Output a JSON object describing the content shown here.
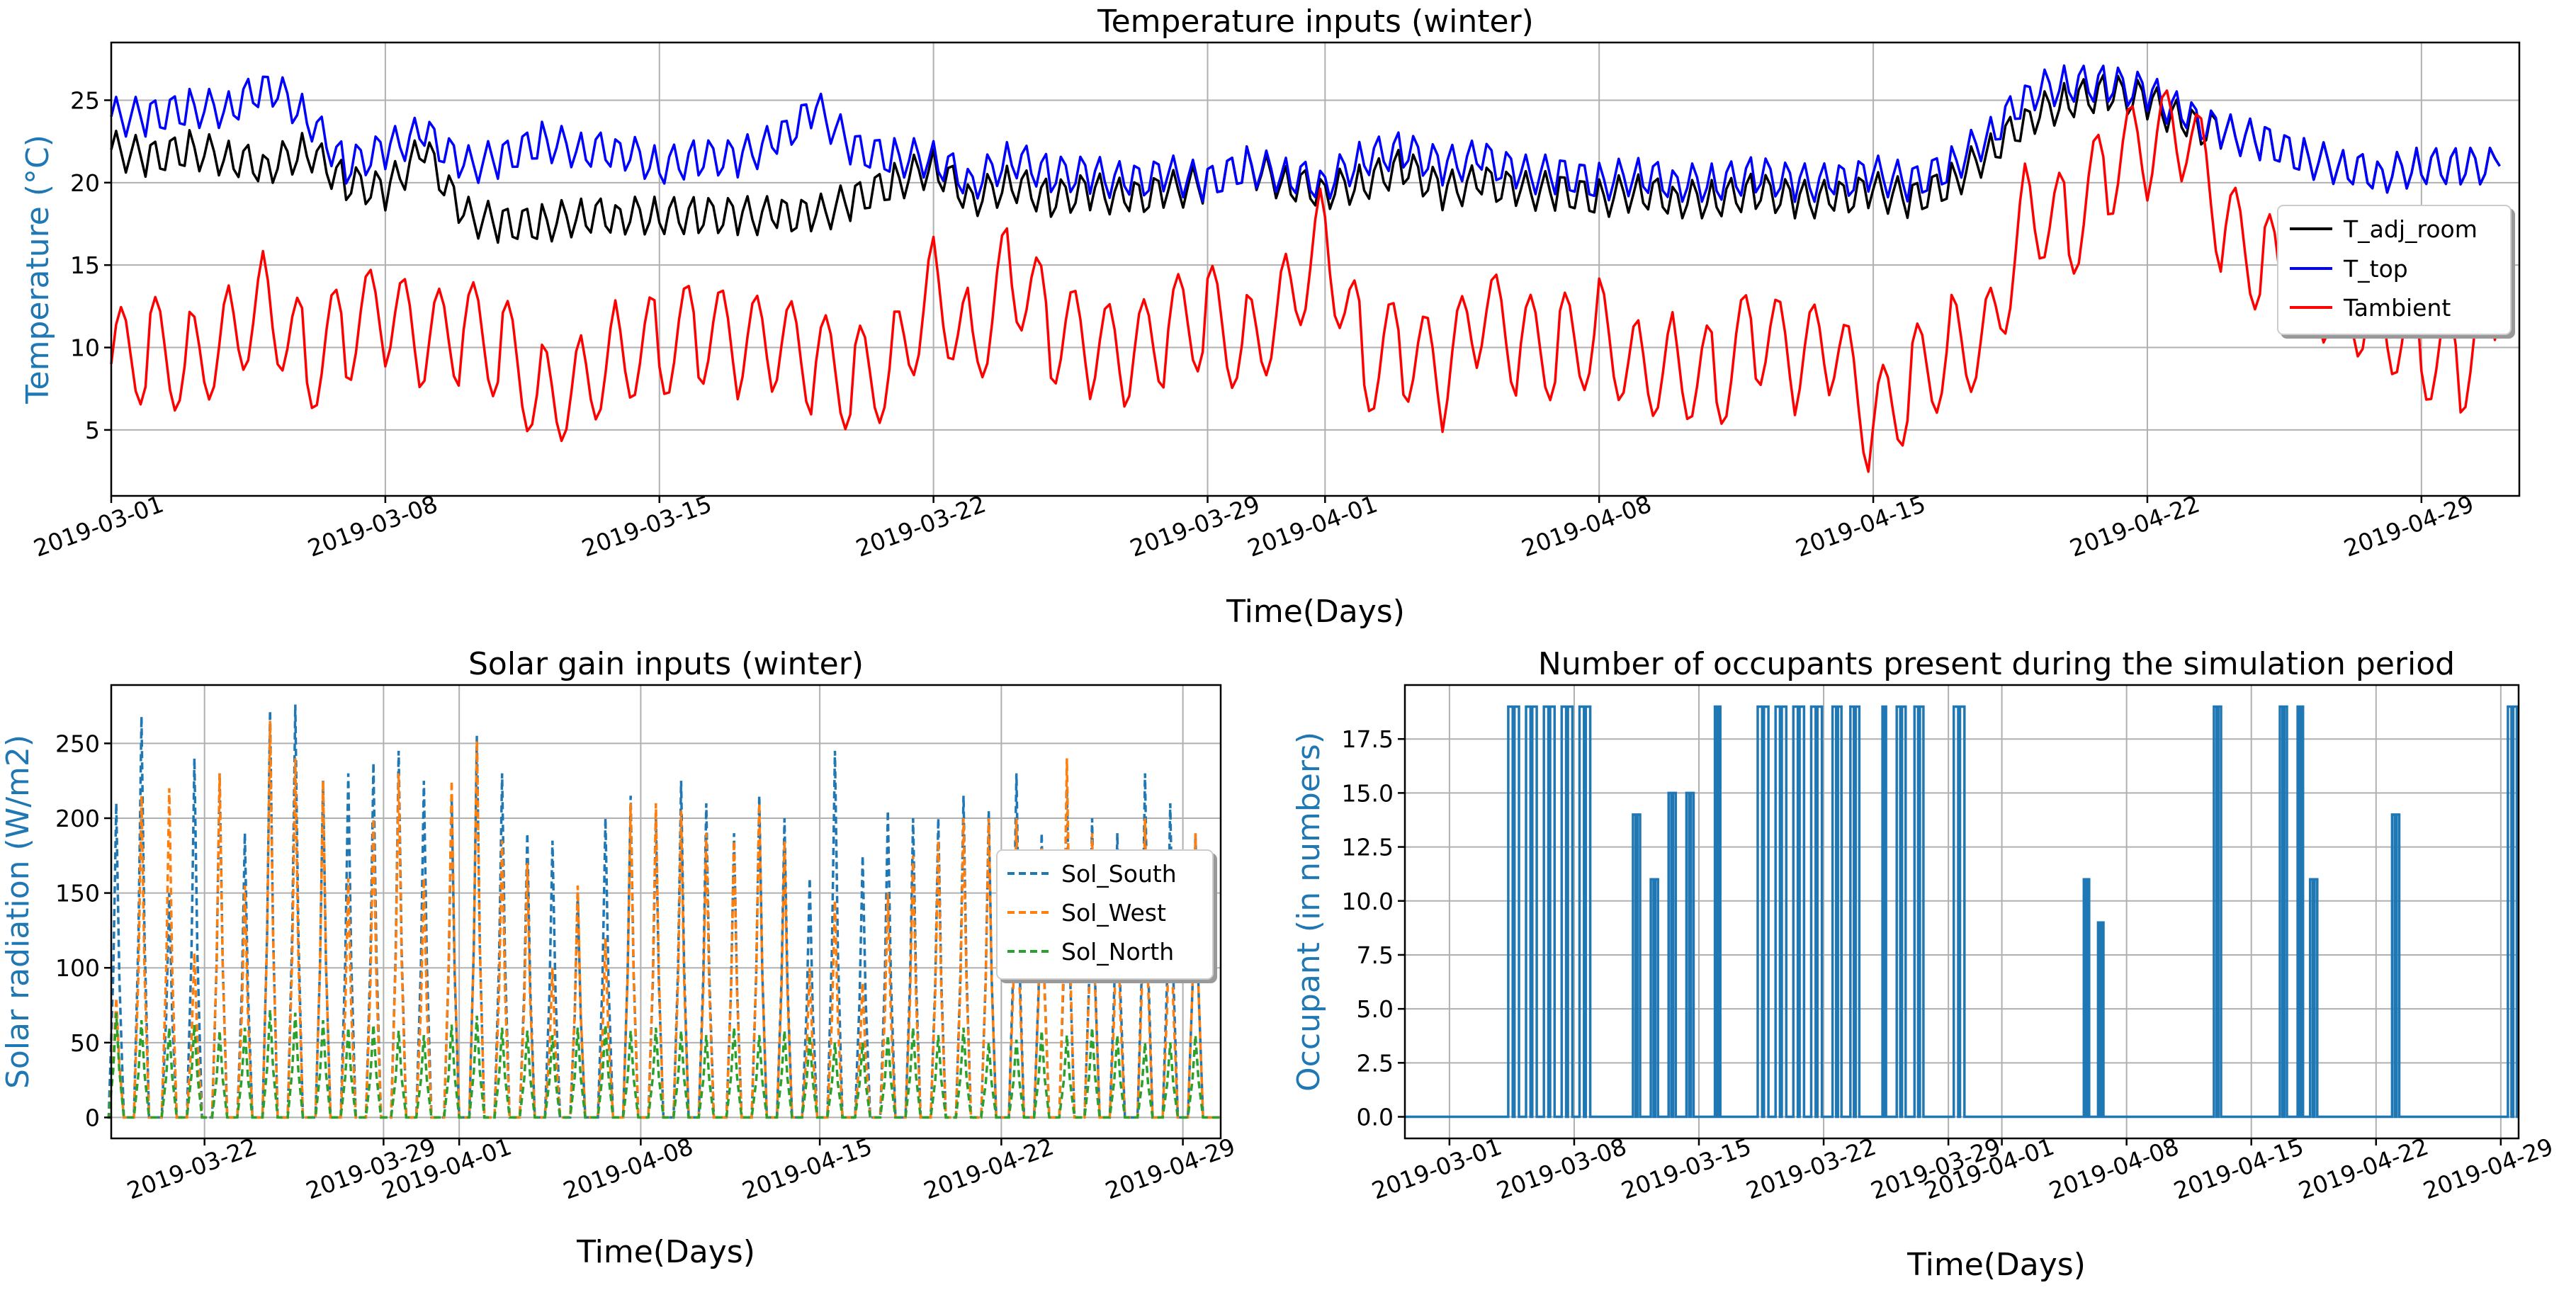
{
  "colors": {
    "T_adj_room": "#000000",
    "T_top": "#0000ff",
    "Tambient": "#ff0000",
    "Sol_South": "#1f77b4",
    "Sol_West": "#ff7f0e",
    "Sol_North": "#2ca02c",
    "occupant": "#1f77b4"
  },
  "chart_data": [
    {
      "type": "line",
      "title": "Temperature inputs (winter)",
      "xlabel": "Time(Days)",
      "ylabel": "Temperature (°C)",
      "xlim": [
        0,
        61.5
      ],
      "ylim": [
        1,
        28.5
      ],
      "x_ticks": [
        {
          "label": "2019-03-01",
          "day": 0
        },
        {
          "label": "2019-03-08",
          "day": 7
        },
        {
          "label": "2019-03-15",
          "day": 14
        },
        {
          "label": "2019-03-22",
          "day": 21
        },
        {
          "label": "2019-03-29",
          "day": 28
        },
        {
          "label": "2019-04-01",
          "day": 31
        },
        {
          "label": "2019-04-08",
          "day": 38
        },
        {
          "label": "2019-04-15",
          "day": 45
        },
        {
          "label": "2019-04-22",
          "day": 52
        },
        {
          "label": "2019-04-29",
          "day": 59
        }
      ],
      "y_ticks": [
        5,
        10,
        15,
        20,
        25
      ],
      "legend": {
        "position": "center-right"
      },
      "series": [
        {
          "name": "T_adj_room",
          "color_key": "T_adj_room",
          "style": "solid",
          "x": [
            0,
            1,
            2,
            3,
            4,
            5,
            6,
            7,
            8,
            9,
            10,
            11,
            12,
            13,
            14,
            15,
            16,
            17,
            18,
            19,
            20,
            21,
            22,
            23,
            24,
            25,
            26,
            27,
            28,
            29,
            30,
            31,
            32,
            33,
            34,
            35,
            36,
            37,
            38,
            39,
            40,
            41,
            42,
            43,
            44,
            45,
            46,
            47,
            48,
            49,
            50,
            51,
            52,
            53,
            54,
            55,
            56,
            57,
            58,
            59,
            60,
            61
          ],
          "values": [
            22,
            21.5,
            22,
            21.5,
            21,
            22,
            20,
            19.5,
            22,
            18,
            17.5,
            17.5,
            18,
            18,
            18,
            18,
            18,
            18,
            18,
            19,
            20,
            21,
            19,
            20,
            19,
            19.5,
            19,
            19.5,
            20,
            21,
            20,
            19.5,
            20,
            21,
            19.5,
            20,
            19.5,
            19.5,
            19,
            19.5,
            19,
            19,
            19.5,
            19,
            19,
            19.5,
            19,
            20,
            22,
            24,
            25,
            25.5,
            25,
            23.5,
            23,
            22.5,
            21.5,
            21,
            20.5,
            21,
            21,
            21
          ]
        },
        {
          "name": "T_top",
          "color_key": "T_top",
          "style": "solid",
          "x": [
            0,
            1,
            2,
            3,
            4,
            5,
            6,
            7,
            8,
            9,
            10,
            11,
            12,
            13,
            14,
            15,
            16,
            17,
            18,
            19,
            20,
            21,
            22,
            23,
            24,
            25,
            26,
            27,
            28,
            29,
            30,
            31,
            32,
            33,
            34,
            35,
            36,
            37,
            38,
            39,
            40,
            41,
            42,
            43,
            44,
            45,
            46,
            47,
            48,
            49,
            50,
            51,
            52,
            53,
            54,
            55,
            56,
            57,
            58,
            59,
            60,
            61
          ],
          "values": [
            24,
            24,
            24.5,
            24.5,
            26,
            24,
            21,
            22,
            23,
            21,
            21.5,
            22.5,
            22,
            22,
            21,
            21.5,
            21.5,
            22.5,
            24.5,
            22,
            21.5,
            21.5,
            20,
            21.5,
            20.5,
            20.5,
            20,
            20.5,
            20,
            21,
            20.5,
            20,
            21.5,
            22,
            21,
            21.5,
            20.5,
            20.5,
            20,
            20.5,
            20,
            20,
            20.5,
            20,
            20,
            20.5,
            20,
            21,
            23,
            25.5,
            26,
            26,
            25.5,
            24,
            23,
            22.5,
            21.5,
            21,
            20.5,
            21,
            21,
            21
          ]
        },
        {
          "name": "Tambient",
          "color_key": "Tambient",
          "style": "solid",
          "x": [
            0,
            1,
            2,
            3,
            4,
            5,
            6,
            7,
            8,
            9,
            10,
            11,
            12,
            13,
            14,
            15,
            16,
            17,
            18,
            19,
            20,
            21,
            22,
            23,
            24,
            25,
            26,
            27,
            28,
            29,
            30,
            31,
            32,
            33,
            34,
            35,
            36,
            37,
            38,
            39,
            40,
            41,
            42,
            43,
            44,
            45,
            46,
            47,
            48,
            49,
            50,
            51,
            52,
            53,
            54,
            55,
            56,
            57,
            58,
            59,
            60,
            61
          ],
          "values": [
            9,
            10,
            9,
            11,
            13,
            9,
            11,
            12,
            10,
            11,
            10,
            7,
            8,
            10,
            10,
            11,
            10,
            10,
            9,
            8,
            9,
            14,
            10,
            15,
            11,
            10,
            9,
            11,
            12,
            10,
            13,
            17,
            9,
            10,
            8,
            12,
            10,
            10,
            11,
            9,
            9,
            8,
            11,
            9,
            10,
            5,
            8,
            10,
            11,
            19,
            17,
            21,
            22,
            23,
            17,
            15,
            14,
            13,
            12,
            10,
            9,
            12
          ]
        }
      ]
    },
    {
      "type": "line",
      "title": "Solar gain inputs (winter)",
      "xlabel": "Time(Days)",
      "ylabel": "Solar radiation (W/m2)",
      "xlim": [
        0,
        44
      ],
      "ylim": [
        -14,
        289
      ],
      "x_ticks": [
        {
          "label": "2019-03-22",
          "day": 3.7
        },
        {
          "label": "2019-03-29",
          "day": 10.8
        },
        {
          "label": "2019-04-01",
          "day": 13.8
        },
        {
          "label": "2019-04-08",
          "day": 21
        },
        {
          "label": "2019-04-15",
          "day": 28.1
        },
        {
          "label": "2019-04-22",
          "day": 35.3
        },
        {
          "label": "2019-04-29",
          "day": 42.5
        }
      ],
      "y_ticks": [
        0,
        50,
        100,
        150,
        200,
        250
      ],
      "legend": {
        "position": "center-right"
      },
      "series": [
        {
          "name": "Sol_South",
          "color_key": "Sol_South",
          "style": "dashed",
          "peak_day": [
            0.2,
            1.2,
            2.3,
            3.3,
            4.3,
            5.3,
            6.3,
            7.3,
            8.4,
            9.4,
            10.4,
            11.4,
            12.4,
            13.5,
            14.5,
            15.5,
            16.5,
            17.5,
            18.5,
            19.6,
            20.6,
            21.6,
            22.6,
            23.6,
            24.7,
            25.7,
            26.7,
            27.7,
            28.7,
            29.8,
            30.8,
            31.8,
            32.8,
            33.8,
            34.8,
            35.9,
            36.9,
            37.9,
            38.9,
            39.9,
            41,
            42,
            43
          ],
          "peak_value": [
            210,
            268,
            150,
            240,
            230,
            190,
            272,
            276,
            225,
            230,
            237,
            245,
            225,
            215,
            255,
            230,
            190,
            185,
            150,
            200,
            215,
            200,
            225,
            210,
            190,
            215,
            200,
            160,
            245,
            175,
            205,
            200,
            200,
            215,
            205,
            230,
            190,
            220,
            200,
            190,
            230,
            210,
            190
          ]
        },
        {
          "name": "Sol_West",
          "color_key": "Sol_West",
          "style": "dashed",
          "peak_day": [
            0.2,
            1.2,
            2.3,
            3.3,
            4.3,
            5.3,
            6.3,
            7.3,
            8.4,
            9.4,
            10.4,
            11.4,
            12.4,
            13.5,
            14.5,
            15.5,
            16.5,
            17.5,
            18.5,
            19.6,
            20.6,
            21.6,
            22.6,
            23.6,
            24.7,
            25.7,
            26.7,
            27.7,
            28.7,
            29.8,
            30.8,
            31.8,
            32.8,
            33.8,
            34.8,
            35.9,
            36.9,
            37.9,
            38.9,
            39.9,
            41,
            42,
            43
          ],
          "peak_value": [
            80,
            215,
            220,
            110,
            230,
            155,
            265,
            240,
            225,
            160,
            200,
            230,
            160,
            225,
            252,
            185,
            170,
            100,
            155,
            120,
            210,
            210,
            205,
            190,
            185,
            210,
            185,
            100,
            145,
            90,
            150,
            175,
            185,
            200,
            200,
            200,
            180,
            240,
            190,
            155,
            200,
            165,
            190
          ]
        },
        {
          "name": "Sol_North",
          "color_key": "Sol_North",
          "style": "dashed",
          "peak_day": [
            0.2,
            1.2,
            2.3,
            3.3,
            4.3,
            5.3,
            6.3,
            7.3,
            8.4,
            9.4,
            10.4,
            11.4,
            12.4,
            13.5,
            14.5,
            15.5,
            16.5,
            17.5,
            18.5,
            19.6,
            20.6,
            21.6,
            22.6,
            23.6,
            24.7,
            25.7,
            26.7,
            27.7,
            28.7,
            29.8,
            30.8,
            31.8,
            32.8,
            33.8,
            34.8,
            35.9,
            36.9,
            37.9,
            38.9,
            39.9,
            41,
            42,
            43
          ],
          "peak_value": [
            70,
            65,
            60,
            62,
            58,
            60,
            72,
            70,
            65,
            60,
            62,
            58,
            55,
            62,
            68,
            60,
            58,
            55,
            60,
            62,
            58,
            60,
            58,
            55,
            60,
            55,
            58,
            55,
            50,
            50,
            55,
            60,
            55,
            60,
            50,
            52,
            58,
            55,
            60,
            55,
            50,
            50,
            55
          ]
        }
      ]
    },
    {
      "type": "line",
      "title": "Number of occupants present during the simulation period",
      "xlabel": "Time(Days)",
      "ylabel": "Occupant (in numbers)",
      "xlim": [
        -2.5,
        60
      ],
      "ylim": [
        -1,
        20
      ],
      "x_ticks": [
        {
          "label": "2019-03-01",
          "day": 0
        },
        {
          "label": "2019-03-08",
          "day": 7
        },
        {
          "label": "2019-03-15",
          "day": 14
        },
        {
          "label": "2019-03-22",
          "day": 21
        },
        {
          "label": "2019-03-29",
          "day": 28
        },
        {
          "label": "2019-04-01",
          "day": 31
        },
        {
          "label": "2019-04-08",
          "day": 38
        },
        {
          "label": "2019-04-15",
          "day": 45
        },
        {
          "label": "2019-04-22",
          "day": 52
        },
        {
          "label": "2019-04-29",
          "day": 59
        }
      ],
      "y_ticks": [
        "0.0",
        "2.5",
        "5.0",
        "7.5",
        "10.0",
        "12.5",
        "15.0",
        "17.5"
      ],
      "step_series": {
        "name": "Occupant",
        "color_key": "occupant",
        "pulses": [
          {
            "start": 3.3,
            "end": 3.9,
            "value": 19
          },
          {
            "start": 4.3,
            "end": 4.9,
            "value": 19
          },
          {
            "start": 5.3,
            "end": 5.9,
            "value": 19
          },
          {
            "start": 6.3,
            "end": 6.9,
            "value": 19
          },
          {
            "start": 7.3,
            "end": 7.9,
            "value": 19
          },
          {
            "start": 10.3,
            "end": 10.7,
            "value": 14
          },
          {
            "start": 11.3,
            "end": 11.7,
            "value": 11
          },
          {
            "start": 12.3,
            "end": 12.7,
            "value": 15
          },
          {
            "start": 13.3,
            "end": 13.7,
            "value": 15
          },
          {
            "start": 14.9,
            "end": 15.2,
            "value": 19
          },
          {
            "start": 17.3,
            "end": 17.9,
            "value": 19
          },
          {
            "start": 18.3,
            "end": 18.9,
            "value": 19
          },
          {
            "start": 19.3,
            "end": 19.9,
            "value": 19
          },
          {
            "start": 20.3,
            "end": 20.9,
            "value": 19
          },
          {
            "start": 21.5,
            "end": 22.0,
            "value": 19
          },
          {
            "start": 22.5,
            "end": 23.0,
            "value": 19
          },
          {
            "start": 24.3,
            "end": 24.5,
            "value": 19
          },
          {
            "start": 25.1,
            "end": 25.6,
            "value": 19
          },
          {
            "start": 26.1,
            "end": 26.6,
            "value": 19
          },
          {
            "start": 28.3,
            "end": 28.9,
            "value": 19
          },
          {
            "start": 35.6,
            "end": 35.9,
            "value": 11
          },
          {
            "start": 36.4,
            "end": 36.7,
            "value": 9
          },
          {
            "start": 42.9,
            "end": 43.3,
            "value": 19
          },
          {
            "start": 46.6,
            "end": 47.0,
            "value": 19
          },
          {
            "start": 47.6,
            "end": 47.9,
            "value": 19
          },
          {
            "start": 48.3,
            "end": 48.7,
            "value": 11
          },
          {
            "start": 52.9,
            "end": 53.3,
            "value": 14
          },
          {
            "start": 59.4,
            "end": 59.9,
            "value": 19
          }
        ]
      }
    }
  ]
}
